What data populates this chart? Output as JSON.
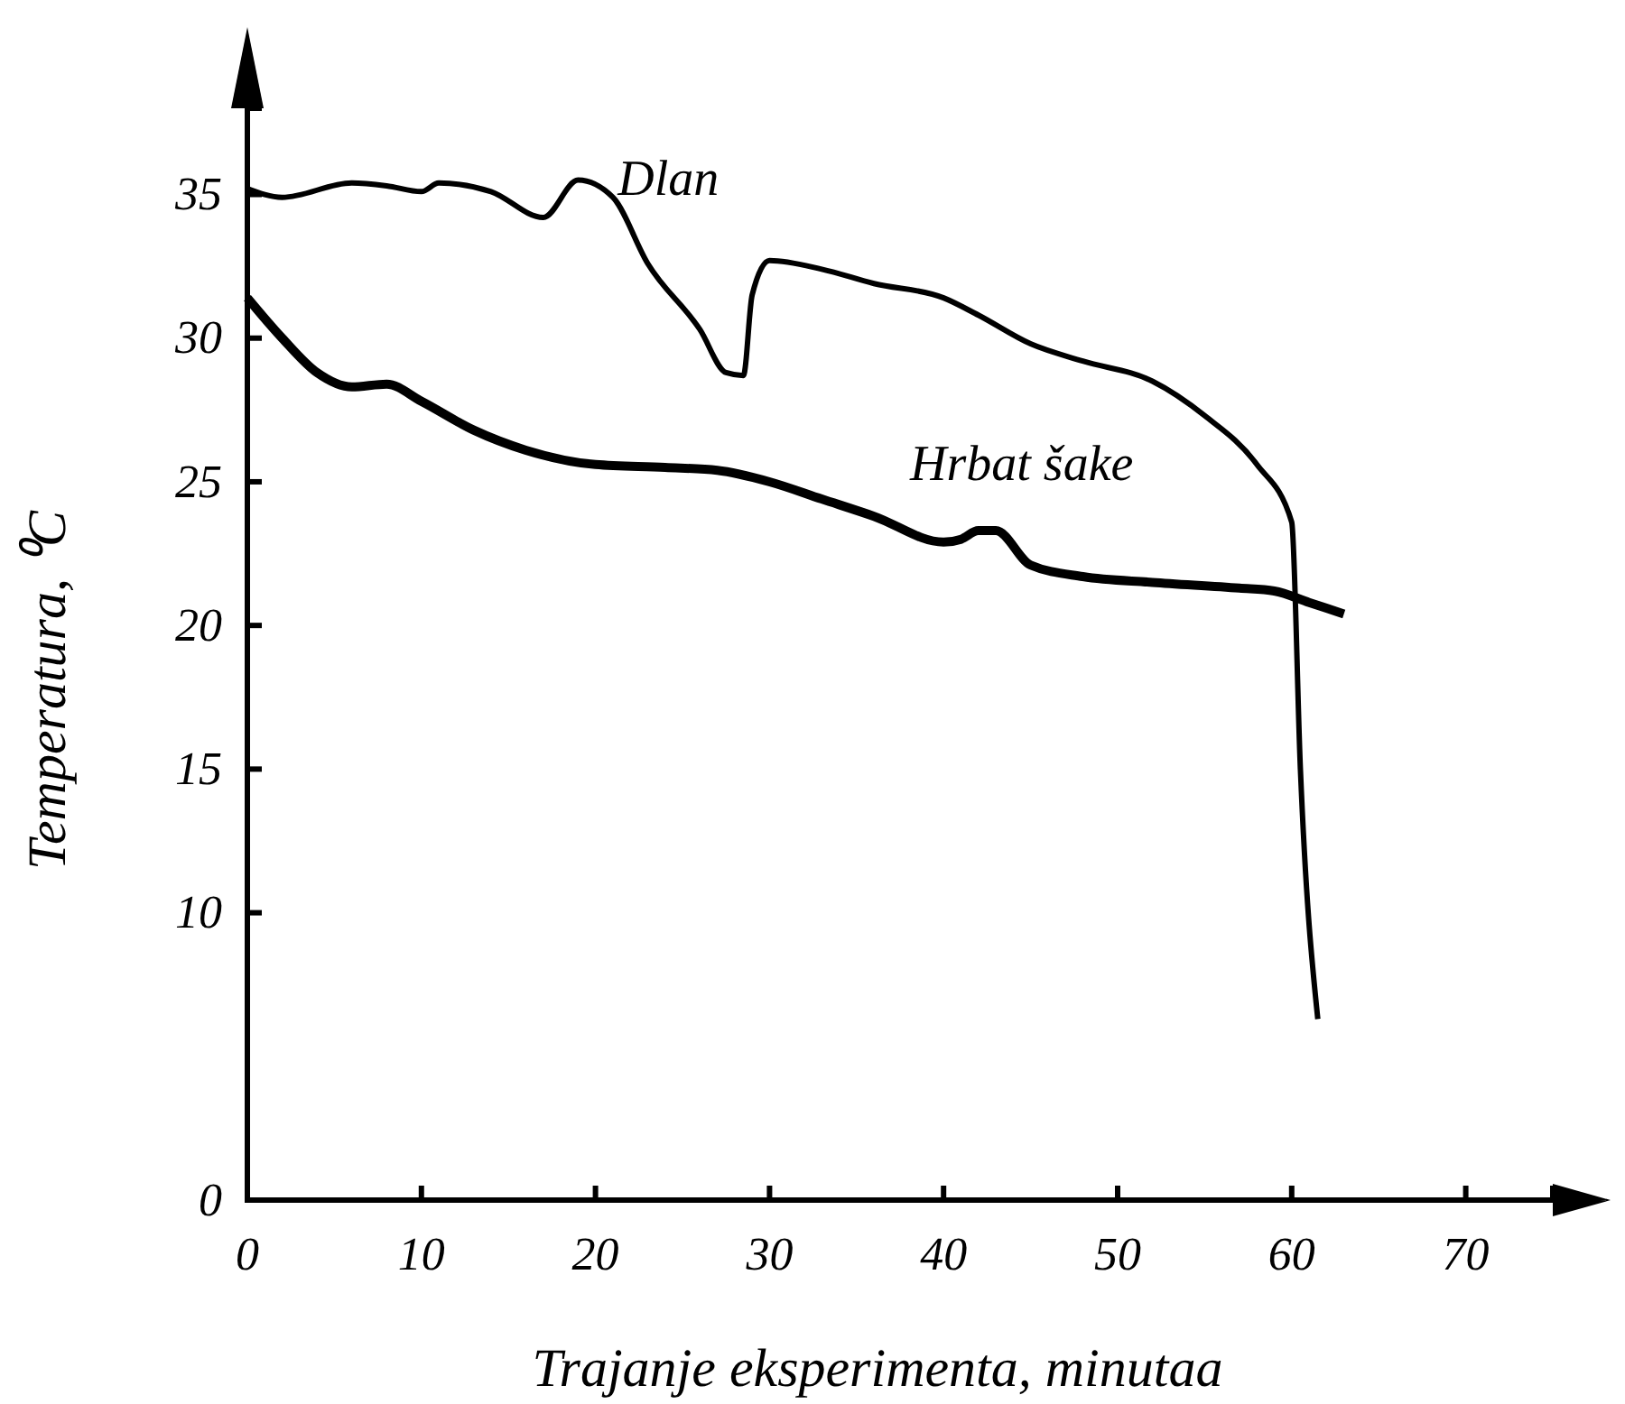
{
  "chart_data": {
    "type": "line",
    "xlabel": "Trajanje eksperimenta, minutaa",
    "ylabel": "Temperatura, ⁰C",
    "xlim": [
      0,
      75
    ],
    "ylim": [
      0,
      38
    ],
    "xticks": [
      0,
      10,
      20,
      30,
      40,
      50,
      60,
      70
    ],
    "yticks": [
      0,
      10,
      15,
      20,
      25,
      30,
      35
    ],
    "grid": false,
    "marker": "none",
    "line_style": "solid",
    "series": [
      {
        "name": "Dlan",
        "color": "#000000",
        "x": [
          0,
          2,
          6,
          8,
          10,
          11,
          14,
          17,
          19,
          21,
          23,
          26,
          27.5,
          28.5,
          29,
          30,
          33,
          36,
          40,
          42,
          45,
          48,
          52,
          55,
          58,
          60,
          60.5,
          61.5
        ],
        "values": [
          35.2,
          34.9,
          35.4,
          35.3,
          35.1,
          35.4,
          35.1,
          34.2,
          35.5,
          34.9,
          32.6,
          30.3,
          28.8,
          28.7,
          31.5,
          32.7,
          32.4,
          31.9,
          31.4,
          30.8,
          29.8,
          29.2,
          28.5,
          27.3,
          25.6,
          23.6,
          15,
          6.3
        ]
      },
      {
        "name": "Hrbat šake",
        "color": "#000000",
        "x": [
          0,
          2,
          4,
          6,
          8,
          10,
          13,
          16,
          20,
          24,
          27,
          30,
          33,
          36,
          40,
          41,
          42,
          43,
          45,
          48,
          52,
          57,
          59,
          61,
          63
        ],
        "values": [
          31.4,
          30,
          28.8,
          28.3,
          28.4,
          27.8,
          26.8,
          26.1,
          25.6,
          25.5,
          25.4,
          25,
          24.4,
          23.8,
          22.9,
          23,
          23.3,
          23.3,
          22.1,
          21.7,
          21.5,
          21.3,
          21.2,
          20.8,
          20.4
        ]
      }
    ]
  }
}
